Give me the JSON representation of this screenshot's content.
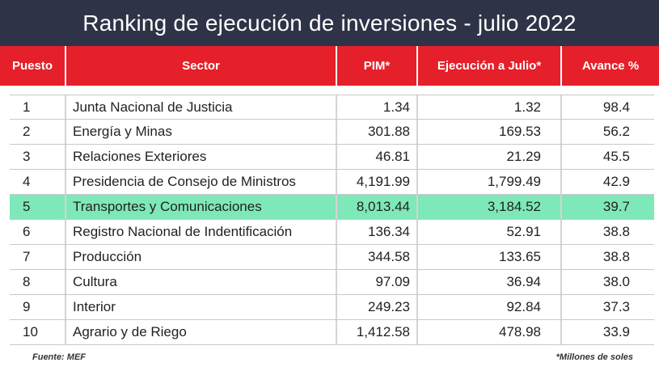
{
  "title": "Ranking de ejecución de inversiones - julio 2022",
  "colors": {
    "title_bg": "#2f3347",
    "header_bg": "#e5202a",
    "highlight": "#7ee8b8"
  },
  "chart_data": {
    "type": "table",
    "title": "Ranking de ejecución de inversiones - julio 2022",
    "columns": [
      "Puesto",
      "Sector",
      "PIM*",
      "Ejecución a Julio*",
      "Avance %"
    ],
    "rows": [
      [
        "1",
        "Junta Nacional de Justicia",
        "1.34",
        "1.32",
        "98.4"
      ],
      [
        "2",
        "Energía y Minas",
        "301.88",
        "169.53",
        "56.2"
      ],
      [
        "3",
        "Relaciones Exteriores",
        "46.81",
        "21.29",
        "45.5"
      ],
      [
        "4",
        "Presidencia de Consejo de Ministros",
        "4,191.99",
        "1,799.49",
        "42.9"
      ],
      [
        "5",
        "Transportes y Comunicaciones",
        "8,013.44",
        "3,184.52",
        "39.7"
      ],
      [
        "6",
        "Registro Nacional de Indentificación",
        "136.34",
        "52.91",
        "38.8"
      ],
      [
        "7",
        "Producción",
        "344.58",
        "133.65",
        "38.8"
      ],
      [
        "8",
        "Cultura",
        "97.09",
        "36.94",
        "38.0"
      ],
      [
        "9",
        "Interior",
        "249.23",
        "92.84",
        "37.3"
      ],
      [
        "10",
        "Agrario y de Riego",
        "1,412.58",
        "478.98",
        "33.9"
      ]
    ],
    "highlighted_row": 4
  },
  "footer": {
    "source": "Fuente: MEF",
    "note": "*Millones de soles"
  }
}
